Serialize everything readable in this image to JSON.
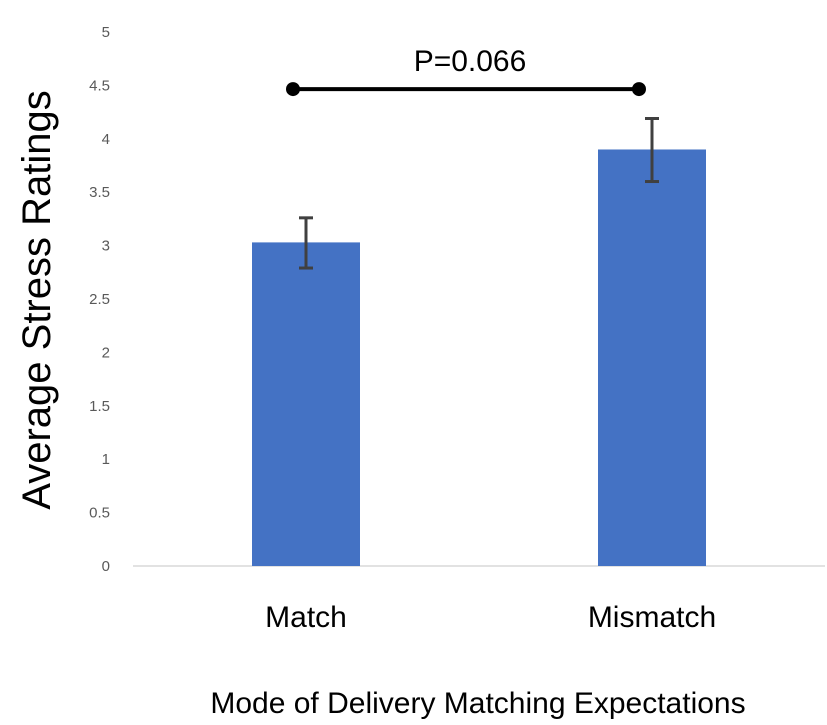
{
  "chart_data": {
    "type": "bar",
    "title": "",
    "xlabel": "Mode of Delivery Matching Expectations",
    "ylabel": "Average Stress Ratings",
    "categories": [
      "Match",
      "Mismatch"
    ],
    "values": [
      3.03,
      3.9
    ],
    "error_bars": [
      {
        "low": 2.79,
        "high": 3.26
      },
      {
        "low": 3.6,
        "high": 4.19
      }
    ],
    "ylim": [
      0,
      5
    ],
    "yticks": [
      "0",
      "0.5",
      "1",
      "1.5",
      "2",
      "2.5",
      "3",
      "3.5",
      "4",
      "4.5",
      "5"
    ],
    "grid": false,
    "annotation": {
      "text": "P=0.066",
      "from_category": "Match",
      "to_category": "Mismatch",
      "y": 4.4
    },
    "colors": {
      "bar": "#4472C4",
      "error": "#404040",
      "bracket": "#000000",
      "axis": "#d9d9d9",
      "tick_text": "#595959",
      "label_text": "#000000"
    }
  }
}
